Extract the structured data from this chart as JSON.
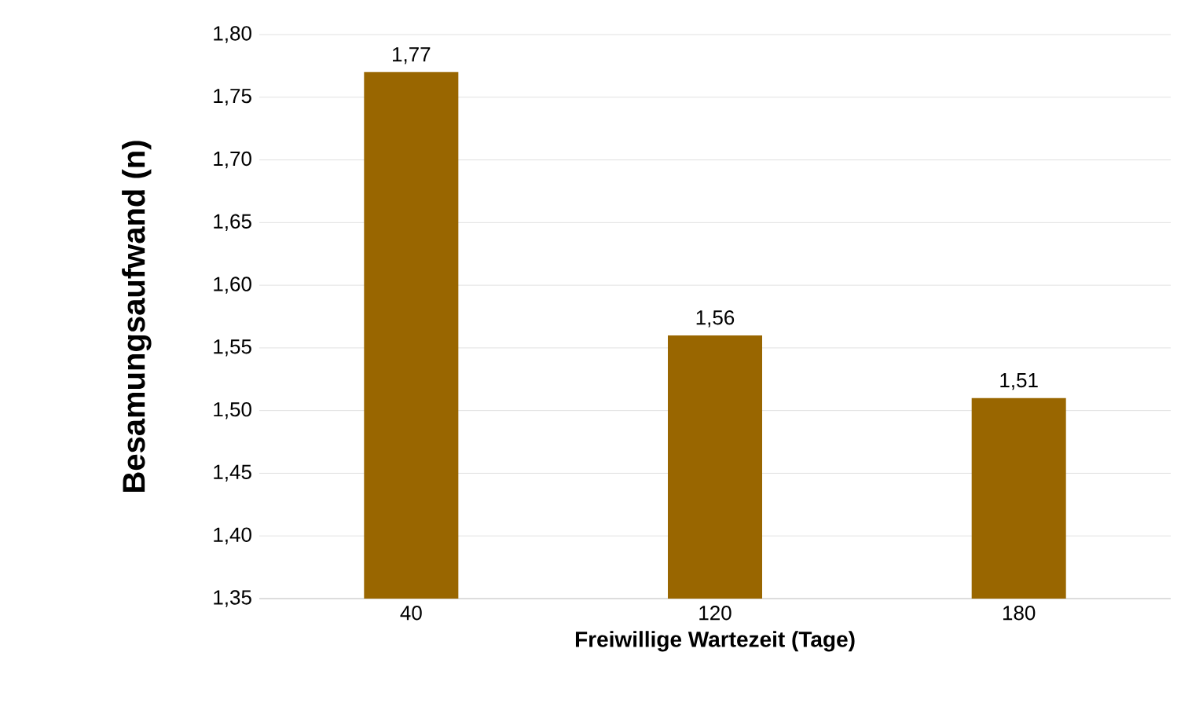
{
  "chart_data": {
    "type": "bar",
    "xlabel": "Freiwillige Wartezeit (Tage)",
    "ylabel": "Besamungsaufwand (n)",
    "categories": [
      "40",
      "120",
      "180"
    ],
    "values": [
      1.77,
      1.56,
      1.51
    ],
    "value_labels": [
      "1,77",
      "1,56",
      "1,51"
    ],
    "color": "#996600",
    "ylim": [
      1.35,
      1.8
    ],
    "yticks": [
      {
        "value": 1.35,
        "label": "1,35"
      },
      {
        "value": 1.4,
        "label": "1,40"
      },
      {
        "value": 1.45,
        "label": "1,45"
      },
      {
        "value": 1.5,
        "label": "1,50"
      },
      {
        "value": 1.55,
        "label": "1,55"
      },
      {
        "value": 1.6,
        "label": "1,60"
      },
      {
        "value": 1.65,
        "label": "1,65"
      },
      {
        "value": 1.7,
        "label": "1,70"
      },
      {
        "value": 1.75,
        "label": "1,75"
      },
      {
        "value": 1.8,
        "label": "1,80"
      }
    ],
    "grid": "y"
  }
}
